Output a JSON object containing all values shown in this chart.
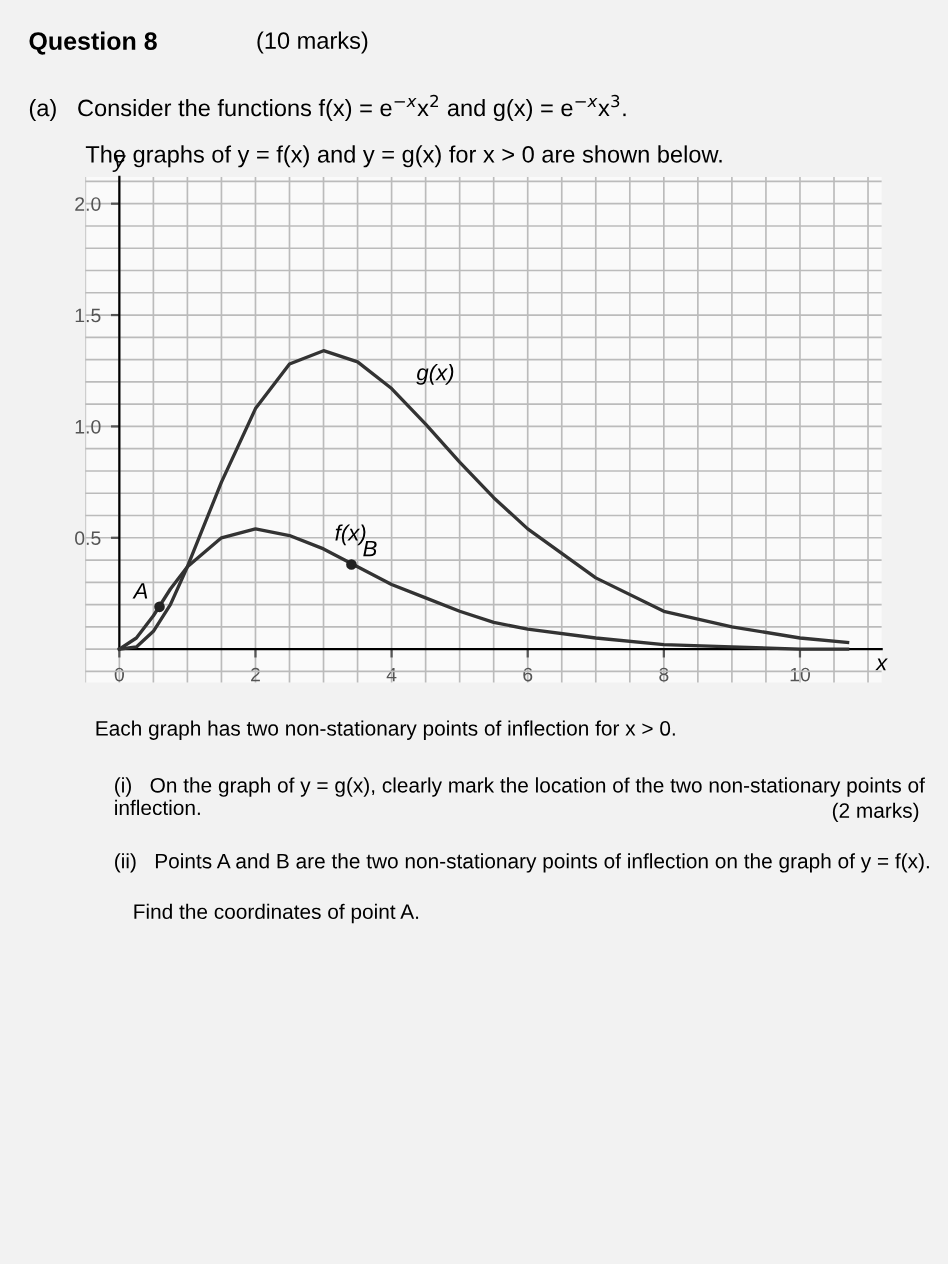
{
  "chart_data": {
    "type": "line",
    "xlabel": "x",
    "ylabel": "y",
    "xlim": [
      -0.5,
      11.2
    ],
    "ylim": [
      -0.15,
      2.12
    ],
    "xticks": [
      0,
      2,
      4,
      6,
      8,
      10
    ],
    "yticks": [
      0.5,
      {
        "value": 1.0,
        "label": "1.0"
      },
      1.5,
      {
        "value": 2.0,
        "label": "2.0"
      }
    ],
    "grid": true,
    "marker": "none",
    "line_style": "solid",
    "legend": false,
    "x": [
      0,
      0.25,
      0.5,
      0.75,
      1,
      1.5,
      2,
      2.5,
      3,
      3.5,
      4,
      4.5,
      5,
      5.5,
      6,
      7,
      8,
      9,
      10,
      10.7
    ],
    "series": [
      {
        "color": "#333333",
        "values": [
          0,
          0.05,
          0.15,
          0.27,
          0.37,
          0.5,
          0.54,
          0.51,
          0.45,
          0.37,
          0.29,
          0.23,
          0.17,
          0.12,
          0.09,
          0.05,
          0.02,
          0.01,
          0.0,
          0.0
        ]
      },
      {
        "color": "#333333",
        "values": [
          0,
          0.01,
          0.08,
          0.2,
          0.37,
          0.75,
          1.08,
          1.28,
          1.34,
          1.29,
          1.17,
          1.01,
          0.84,
          0.68,
          0.54,
          0.32,
          0.17,
          0.1,
          0.05,
          0.03
        ]
      },
      {
        "type": "scatter",
        "marker": "circle",
        "color": "#222222",
        "x": [
          0.59,
          3.41
        ],
        "values": [
          0.19,
          0.38
        ]
      }
    ],
    "annotations": [
      "Question 8",
      "(10 marks)",
      "(a)   Consider the functions f(x) = e$^{−x}$x$^{2}$ and g(x) = e$^{−x}$x$^{3}$.",
      "The graphs of y = f(x) and y = g(x) for x > 0 are shown below.",
      "Each graph has two non-stationary points of inflection for x > 0.",
      "(i)   On the graph of y = g(x), clearly mark the location of the two non-stationary points of inflection.",
      "(2 marks)",
      "(ii)   Points A and B are the two non-stationary points of inflection on the graph of y = f(x).",
      "Find the coordinates of point A.",
      {
        "text": "g(x)",
        "x": 4.2,
        "y": 1.17
      },
      {
        "text": "f(x)",
        "x": 3.0,
        "y": 0.45
      },
      {
        "text": "A",
        "x": 0.59,
        "y": 0.19
      },
      {
        "text": "B",
        "x": 3.41,
        "y": 0.38
      }
    ]
  }
}
